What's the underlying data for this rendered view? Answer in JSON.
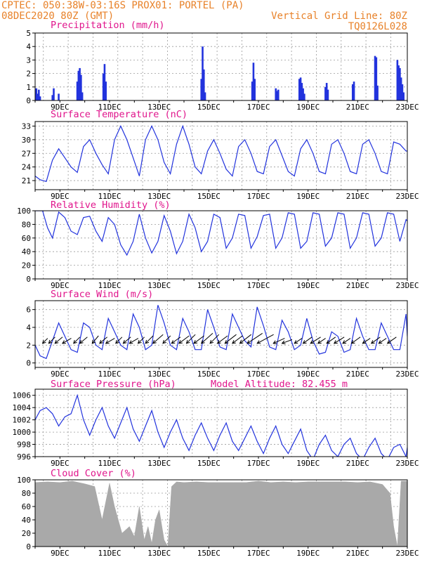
{
  "header": {
    "line1": "CPTEC:   050:38W-03:16S   PROX01: PORTEL (PA)",
    "line2_left": "08DEC2020 80Z (GMT)",
    "line2_right": "Vertical Grid Line: 80Z",
    "line3_right": "TQ0126L028"
  },
  "colors": {
    "series": "#2233dd",
    "cloud": "#a9a9a9",
    "wind_arrow": "#000000",
    "title": "#e0158c",
    "header": "#e8822a"
  },
  "x_axis": {
    "categories": [
      "9DEC",
      "11DEC",
      "13DEC",
      "15DEC",
      "17DEC",
      "19DEC",
      "21DEC",
      "23DEC"
    ],
    "start_day": 8,
    "end_day": 23
  },
  "chart_data": [
    {
      "type": "bar",
      "title": "Precipitation (mm/h)",
      "ylim": [
        0,
        5
      ],
      "yticks": [
        "0",
        "1",
        "2",
        "3",
        "4",
        "5"
      ],
      "x": [
        8.05,
        8.1,
        8.15,
        8.2,
        8.7,
        8.75,
        8.95,
        9.7,
        9.75,
        9.8,
        9.85,
        9.9,
        10.75,
        10.8,
        10.85,
        14.7,
        14.75,
        14.8,
        14.85,
        16.75,
        16.8,
        16.85,
        17.7,
        17.75,
        17.8,
        18.65,
        18.7,
        18.75,
        18.8,
        18.85,
        19.7,
        19.75,
        19.8,
        20.8,
        20.85,
        21.7,
        21.75,
        21.8,
        22.6,
        22.65,
        22.7,
        22.75,
        22.8,
        22.85
      ],
      "values": [
        0.9,
        0.5,
        0.8,
        0.3,
        0.4,
        0.9,
        0.5,
        1.4,
        2.2,
        2.4,
        1.9,
        0.6,
        2.0,
        2.7,
        1.4,
        1.6,
        4.0,
        2.3,
        0.6,
        1.4,
        2.8,
        1.6,
        0.9,
        0.7,
        0.8,
        1.6,
        1.7,
        1.3,
        0.9,
        0.5,
        1.0,
        1.3,
        0.8,
        1.2,
        1.4,
        3.3,
        3.2,
        1.1,
        3.0,
        2.6,
        2.4,
        1.7,
        1.2,
        0.6
      ]
    },
    {
      "type": "line",
      "title": "Surface Temperature (nC)",
      "ylim": [
        19,
        34
      ],
      "yticks": [
        "21",
        "24",
        "27",
        "30",
        "33"
      ],
      "x": [
        8.0,
        8.2,
        8.45,
        8.7,
        8.95,
        9.2,
        9.45,
        9.7,
        9.95,
        10.2,
        10.45,
        10.7,
        10.95,
        11.2,
        11.45,
        11.7,
        11.95,
        12.2,
        12.45,
        12.7,
        12.95,
        13.2,
        13.45,
        13.7,
        13.95,
        14.2,
        14.45,
        14.7,
        14.95,
        15.2,
        15.45,
        15.7,
        15.95,
        16.2,
        16.45,
        16.7,
        16.95,
        17.2,
        17.45,
        17.7,
        17.95,
        18.2,
        18.45,
        18.7,
        18.95,
        19.2,
        19.45,
        19.7,
        19.95,
        20.2,
        20.45,
        20.7,
        20.95,
        21.2,
        21.45,
        21.7,
        21.95,
        22.2,
        22.45,
        22.7,
        22.95,
        23.0
      ],
      "values": [
        22.0,
        21.2,
        20.8,
        25.5,
        28.0,
        26.0,
        24.0,
        22.8,
        28.5,
        30.0,
        27.0,
        24.5,
        22.5,
        30.0,
        33.0,
        30.0,
        26.0,
        22.0,
        30.0,
        33.0,
        30.0,
        25.0,
        22.5,
        29.0,
        33.0,
        29.0,
        24.0,
        22.5,
        27.5,
        30.0,
        27.0,
        23.5,
        22.0,
        28.5,
        30.0,
        27.0,
        23.0,
        22.5,
        28.5,
        30.0,
        26.5,
        23.0,
        22.0,
        28.0,
        30.0,
        27.0,
        23.0,
        22.5,
        29.0,
        30.0,
        27.0,
        23.0,
        22.5,
        29.0,
        30.0,
        27.0,
        23.0,
        22.5,
        29.5,
        29.0,
        27.5,
        27.5
      ]
    },
    {
      "type": "line",
      "title": "Relative Humidity (%)",
      "ylim": [
        0,
        100
      ],
      "yticks": [
        "0",
        "20",
        "40",
        "60",
        "80",
        "100"
      ],
      "x": [
        8.0,
        8.3,
        8.5,
        8.7,
        8.95,
        9.2,
        9.45,
        9.7,
        9.95,
        10.2,
        10.45,
        10.7,
        10.95,
        11.2,
        11.45,
        11.7,
        11.95,
        12.2,
        12.45,
        12.7,
        12.95,
        13.2,
        13.45,
        13.7,
        13.95,
        14.2,
        14.45,
        14.7,
        14.95,
        15.2,
        15.45,
        15.7,
        15.95,
        16.2,
        16.45,
        16.7,
        16.95,
        17.2,
        17.45,
        17.7,
        17.95,
        18.2,
        18.45,
        18.7,
        18.95,
        19.2,
        19.45,
        19.7,
        19.95,
        20.2,
        20.45,
        20.7,
        20.95,
        21.2,
        21.45,
        21.7,
        21.95,
        22.2,
        22.45,
        22.7,
        22.95,
        23.0
      ],
      "values": [
        100,
        100,
        75,
        60,
        98,
        90,
        70,
        65,
        90,
        92,
        70,
        55,
        90,
        80,
        50,
        35,
        55,
        95,
        60,
        38,
        55,
        93,
        70,
        37,
        55,
        95,
        75,
        40,
        55,
        95,
        90,
        45,
        60,
        95,
        93,
        45,
        62,
        93,
        95,
        45,
        60,
        97,
        95,
        45,
        55,
        97,
        95,
        48,
        60,
        97,
        95,
        45,
        60,
        97,
        95,
        48,
        60,
        97,
        95,
        55,
        87,
        85
      ]
    },
    {
      "type": "line",
      "title": "Surface Wind (m/s)",
      "ylim": [
        -0.5,
        7
      ],
      "yticks": [
        "0",
        "2",
        "4",
        "6"
      ],
      "x": [
        8.0,
        8.2,
        8.45,
        8.7,
        8.95,
        9.2,
        9.45,
        9.7,
        9.95,
        10.2,
        10.45,
        10.7,
        10.95,
        11.2,
        11.45,
        11.7,
        11.95,
        12.2,
        12.45,
        12.7,
        12.95,
        13.2,
        13.45,
        13.7,
        13.95,
        14.2,
        14.45,
        14.7,
        14.95,
        15.2,
        15.45,
        15.7,
        15.95,
        16.2,
        16.45,
        16.7,
        16.95,
        17.2,
        17.45,
        17.7,
        17.95,
        18.2,
        18.45,
        18.7,
        18.95,
        19.2,
        19.45,
        19.7,
        19.95,
        20.2,
        20.45,
        20.7,
        20.95,
        21.2,
        21.45,
        21.7,
        21.95,
        22.2,
        22.45,
        22.7,
        22.95,
        23.0
      ],
      "values": [
        2.0,
        0.8,
        0.5,
        2.5,
        4.5,
        3.0,
        1.5,
        1.2,
        4.5,
        4.0,
        2.0,
        1.5,
        5.0,
        3.5,
        2.0,
        1.5,
        5.5,
        4.0,
        1.5,
        2.0,
        6.5,
        4.5,
        2.0,
        1.5,
        5.0,
        3.5,
        1.5,
        1.5,
        6.0,
        4.0,
        1.8,
        1.5,
        5.5,
        4.0,
        2.5,
        1.8,
        6.3,
        4.2,
        1.8,
        1.5,
        4.8,
        3.5,
        1.5,
        2.0,
        5.0,
        2.5,
        1.0,
        1.2,
        3.5,
        3.0,
        1.2,
        1.5,
        5.0,
        3.0,
        1.5,
        1.5,
        4.5,
        3.0,
        1.5,
        1.5,
        5.5,
        3.0
      ],
      "arrows": {
        "x": [
          8.3,
          8.55,
          8.8,
          9.1,
          9.55,
          9.8,
          10.3,
          10.6,
          10.85,
          11.25,
          11.55,
          11.8,
          12.15,
          12.45,
          12.75,
          13.15,
          13.5,
          13.8,
          14.1,
          14.4,
          14.7,
          15.05,
          15.35,
          15.65,
          15.95,
          16.25,
          16.55,
          16.95,
          17.6,
          17.95,
          18.45,
          18.8,
          19.1,
          19.4,
          19.75,
          20.05,
          20.4,
          20.75,
          21.2,
          21.55,
          21.85,
          22.2
        ],
        "u": [
          0.8,
          1.0,
          1.2,
          1.4,
          1.0,
          1.2,
          1.0,
          1.2,
          1.4,
          1.0,
          1.2,
          1.4,
          1.0,
          1.2,
          1.6,
          1.2,
          1.4,
          1.6,
          1.4,
          1.6,
          1.8,
          1.4,
          1.6,
          1.8,
          1.6,
          1.8,
          2.4,
          2.6,
          1.8,
          1.6,
          1.2,
          1.4,
          1.6,
          1.2,
          1.4,
          1.6,
          1.2,
          1.4,
          1.2,
          1.4,
          1.2,
          1.4
        ],
        "v": [
          0.8,
          1.0,
          1.0,
          0.8,
          1.0,
          1.0,
          1.2,
          1.0,
          0.8,
          1.0,
          1.0,
          0.8,
          1.0,
          1.2,
          1.4,
          1.2,
          1.0,
          1.2,
          1.4,
          1.2,
          1.6,
          1.4,
          1.2,
          1.4,
          1.2,
          1.4,
          1.6,
          1.4,
          0.8,
          0.6,
          0.8,
          1.0,
          1.0,
          0.8,
          1.0,
          1.0,
          0.8,
          1.0,
          0.8,
          1.0,
          0.8,
          1.0
        ]
      }
    },
    {
      "type": "line",
      "title": "Surface Pressure (hPa)",
      "annotation": "Model Altitude: 82.455 m",
      "ylim": [
        996,
        1007
      ],
      "yticks": [
        "996",
        "998",
        "1000",
        "1002",
        "1004",
        "1006"
      ],
      "x": [
        8.0,
        8.2,
        8.45,
        8.7,
        8.95,
        9.2,
        9.45,
        9.7,
        9.95,
        10.2,
        10.45,
        10.7,
        10.95,
        11.2,
        11.45,
        11.7,
        11.95,
        12.2,
        12.45,
        12.7,
        12.95,
        13.2,
        13.45,
        13.7,
        13.95,
        14.2,
        14.45,
        14.7,
        14.95,
        15.2,
        15.45,
        15.7,
        15.95,
        16.2,
        16.45,
        16.7,
        16.95,
        17.2,
        17.45,
        17.7,
        17.95,
        18.2,
        18.45,
        18.7,
        18.95,
        19.2,
        19.45,
        19.7,
        19.95,
        20.2,
        20.45,
        20.7,
        20.95,
        21.2,
        21.45,
        21.7,
        21.95,
        22.2,
        22.45,
        22.7,
        22.95,
        23.0
      ],
      "values": [
        1002.0,
        1003.5,
        1004.0,
        1003.0,
        1001.0,
        1002.5,
        1003.0,
        1006.0,
        1002.0,
        999.5,
        1002.0,
        1004.0,
        1001.0,
        999.0,
        1001.5,
        1004.0,
        1000.5,
        998.5,
        1001.0,
        1003.5,
        1000.0,
        997.5,
        1000.0,
        1002.0,
        999.0,
        997.0,
        999.5,
        1001.5,
        999.0,
        997.0,
        999.5,
        1001.5,
        998.5,
        997.0,
        999.0,
        1001.0,
        998.5,
        996.5,
        999.0,
        1001.0,
        998.0,
        996.5,
        998.5,
        1000.5,
        997.0,
        995.5,
        998.0,
        999.5,
        997.0,
        996.0,
        998.0,
        999.0,
        996.5,
        995.5,
        997.5,
        999.0,
        996.5,
        995.5,
        997.5,
        998.0,
        996.0,
        997.5
      ]
    },
    {
      "type": "area",
      "title": "Cloud Cover (%)",
      "ylim": [
        0,
        100
      ],
      "yticks": [
        "0",
        "20",
        "40",
        "60",
        "80",
        "100"
      ],
      "x": [
        8.0,
        8.5,
        9.0,
        9.5,
        10.0,
        10.4,
        10.7,
        11.0,
        11.2,
        11.5,
        11.8,
        12.0,
        12.2,
        12.4,
        12.55,
        12.7,
        12.85,
        13.0,
        13.2,
        13.35,
        13.5,
        13.7,
        14.0,
        14.5,
        15.0,
        16.0,
        16.5,
        17.0,
        17.5,
        18.0,
        18.5,
        19.0,
        19.5,
        20.0,
        20.5,
        21.0,
        21.5,
        22.0,
        22.3,
        22.45,
        22.6,
        22.75,
        22.9,
        23.0
      ],
      "values": [
        96,
        97,
        96,
        98,
        94,
        90,
        40,
        95,
        60,
        20,
        30,
        15,
        60,
        10,
        30,
        5,
        40,
        55,
        10,
        0,
        90,
        97,
        96,
        97,
        96,
        96,
        96,
        98,
        96,
        97,
        96,
        97,
        97,
        97,
        97,
        96,
        97,
        93,
        80,
        30,
        0,
        98,
        98,
        98
      ]
    }
  ]
}
